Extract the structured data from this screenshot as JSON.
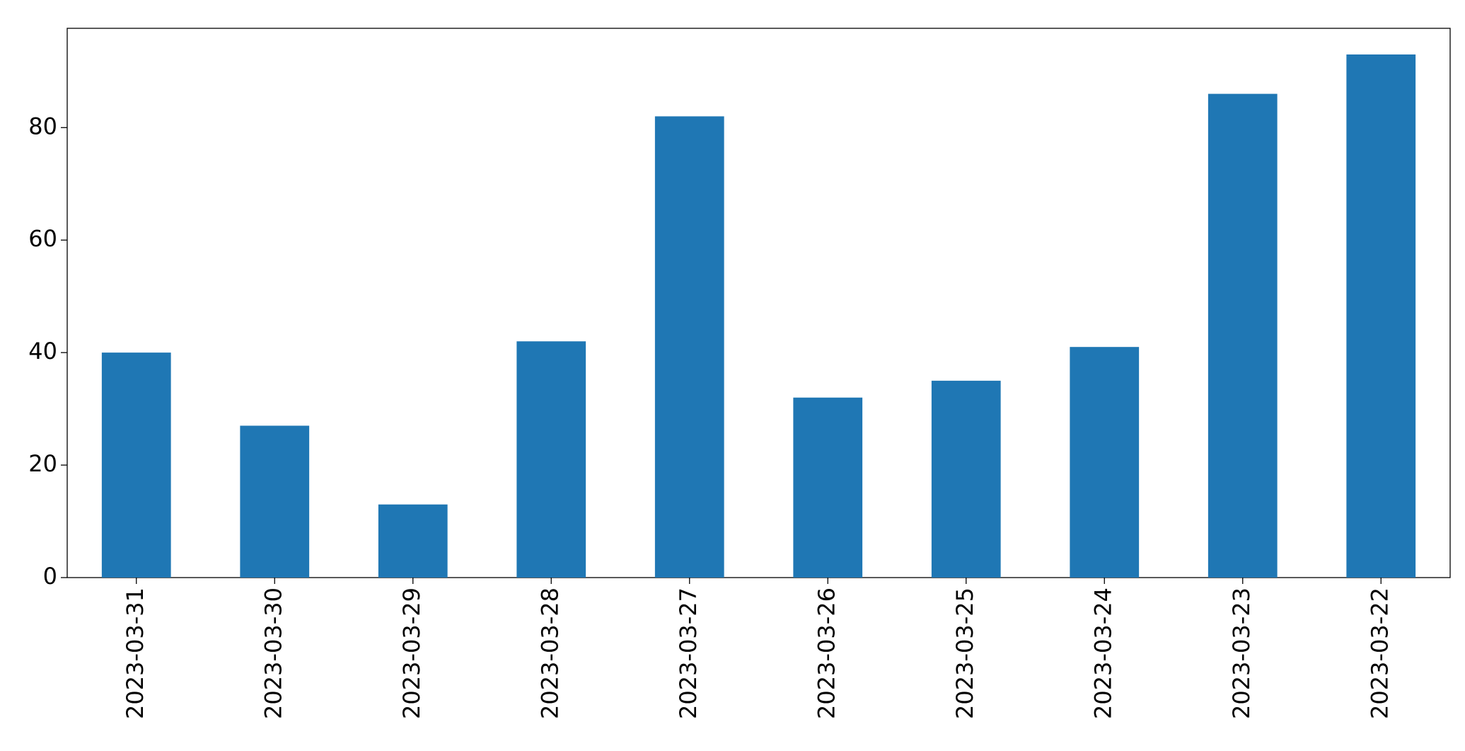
{
  "chart_data": {
    "type": "bar",
    "categories": [
      "2023-03-31",
      "2023-03-30",
      "2023-03-29",
      "2023-03-28",
      "2023-03-27",
      "2023-03-26",
      "2023-03-25",
      "2023-03-24",
      "2023-03-23",
      "2023-03-22"
    ],
    "values": [
      40,
      27,
      13,
      42,
      82,
      32,
      35,
      41,
      86,
      93
    ],
    "color": "#1f77b4",
    "ylim": [
      0,
      97.65
    ],
    "yticks": [
      0,
      20,
      40,
      60,
      80
    ],
    "grid": false
  }
}
